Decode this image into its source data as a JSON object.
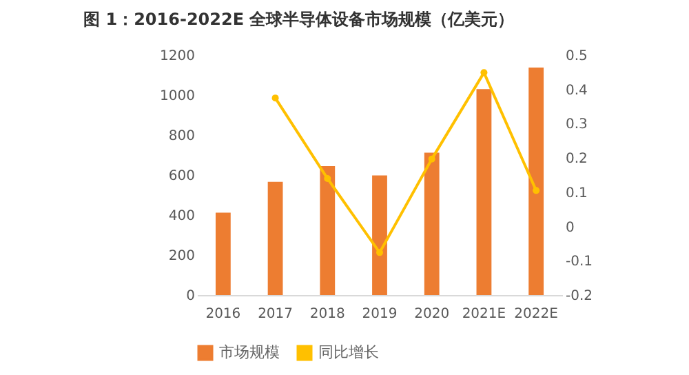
{
  "chart_data": {
    "type": "bar",
    "title": "图 1：2016-2022E 全球半导体设备市场规模（亿美元）",
    "categories": [
      "2016",
      "2017",
      "2018",
      "2019",
      "2020",
      "2021E",
      "2022E"
    ],
    "series": [
      {
        "name": "市场规模",
        "color": "#ed7d31",
        "values": [
          412,
          566,
          645,
          598,
          712,
          1030,
          1138
        ]
      },
      {
        "name": "同比增长",
        "type": "line",
        "axis": "y2",
        "color": "#ffc000",
        "marker": "circle",
        "values": [
          null,
          0.375,
          0.14,
          -0.076,
          0.197,
          0.449,
          0.105
        ]
      }
    ],
    "ylim": [
      0,
      1200
    ],
    "yticks": [
      0,
      200,
      400,
      600,
      800,
      1000,
      1200
    ],
    "y2lim": [
      -0.2,
      0.5
    ],
    "y2ticks": [
      -0.2,
      -0.1,
      0,
      0.1,
      0.2,
      0.3,
      0.4,
      0.5
    ],
    "grid": false,
    "legend": "bottom"
  }
}
